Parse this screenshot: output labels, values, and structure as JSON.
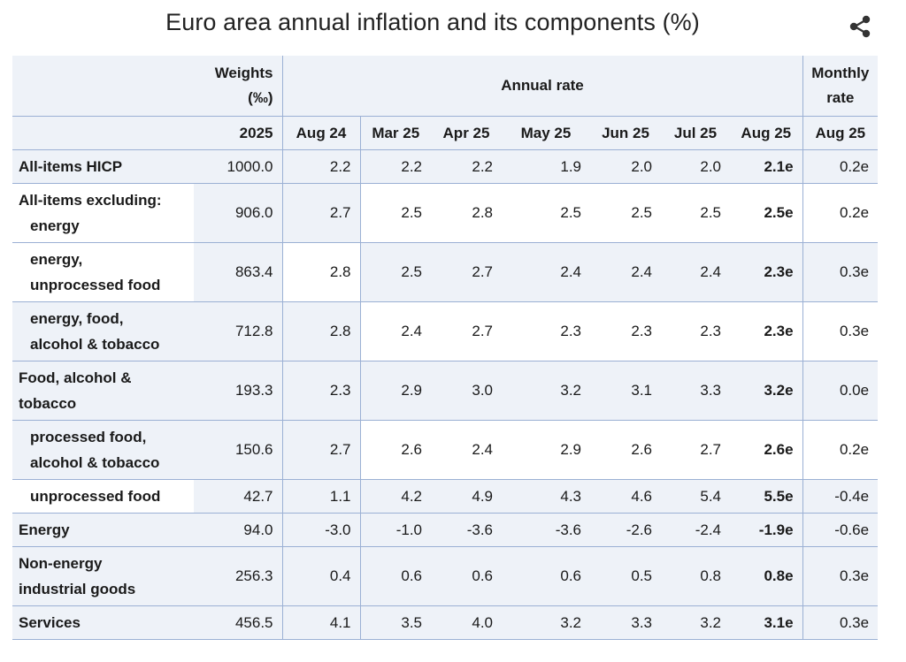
{
  "title": "Euro area annual inflation and its components (%)",
  "icons": {
    "share": "share-icon"
  },
  "header": {
    "weights_label": "Weights (‰)",
    "annual_label": "Annual rate",
    "monthly_label": "Monthly rate",
    "columns": [
      "2025",
      "Aug 24",
      "Mar 25",
      "Apr 25",
      "May 25",
      "Jun 25",
      "Jul 25",
      "Aug 25",
      "Aug 25"
    ]
  },
  "rows": [
    {
      "label": "All-items HICP",
      "weight": "1000.0",
      "values": [
        "2.2",
        "2.2",
        "2.2",
        "1.9",
        "2.0",
        "2.0"
      ],
      "latest": "2.1e",
      "monthly": "0.2e"
    },
    {
      "label": "All-items excluding: energy",
      "weight": "906.0",
      "values": [
        "2.7",
        "2.5",
        "2.8",
        "2.5",
        "2.5",
        "2.5"
      ],
      "latest": "2.5e",
      "monthly": "0.2e"
    },
    {
      "label": "energy, unprocessed food",
      "weight": "863.4",
      "values": [
        "2.8",
        "2.5",
        "2.7",
        "2.4",
        "2.4",
        "2.4"
      ],
      "latest": "2.3e",
      "monthly": "0.3e"
    },
    {
      "label": "energy, food, alcohol & tobacco",
      "weight": "712.8",
      "values": [
        "2.8",
        "2.4",
        "2.7",
        "2.3",
        "2.3",
        "2.3"
      ],
      "latest": "2.3e",
      "monthly": "0.3e"
    },
    {
      "label": "Food, alcohol & tobacco",
      "weight": "193.3",
      "values": [
        "2.3",
        "2.9",
        "3.0",
        "3.2",
        "3.1",
        "3.3"
      ],
      "latest": "3.2e",
      "monthly": "0.0e"
    },
    {
      "label": "processed food, alcohol & tobacco",
      "weight": "150.6",
      "values": [
        "2.7",
        "2.6",
        "2.4",
        "2.9",
        "2.6",
        "2.7"
      ],
      "latest": "2.6e",
      "monthly": "0.2e"
    },
    {
      "label": "unprocessed food",
      "weight": "42.7",
      "values": [
        "1.1",
        "4.2",
        "4.9",
        "4.3",
        "4.6",
        "5.4"
      ],
      "latest": "5.5e",
      "monthly": "-0.4e"
    },
    {
      "label": "Energy",
      "weight": "94.0",
      "values": [
        "-3.0",
        "-1.0",
        "-3.6",
        "-3.6",
        "-2.6",
        "-2.4"
      ],
      "latest": "-1.9e",
      "monthly": "-0.6e"
    },
    {
      "label": "Non-energy industrial goods",
      "weight": "256.3",
      "values": [
        "0.4",
        "0.6",
        "0.6",
        "0.6",
        "0.5",
        "0.8"
      ],
      "latest": "0.8e",
      "monthly": "0.3e"
    },
    {
      "label": "Services",
      "weight": "456.5",
      "values": [
        "4.1",
        "3.5",
        "4.0",
        "3.2",
        "3.3",
        "3.2"
      ],
      "latest": "3.1e",
      "monthly": "0.3e"
    }
  ]
}
